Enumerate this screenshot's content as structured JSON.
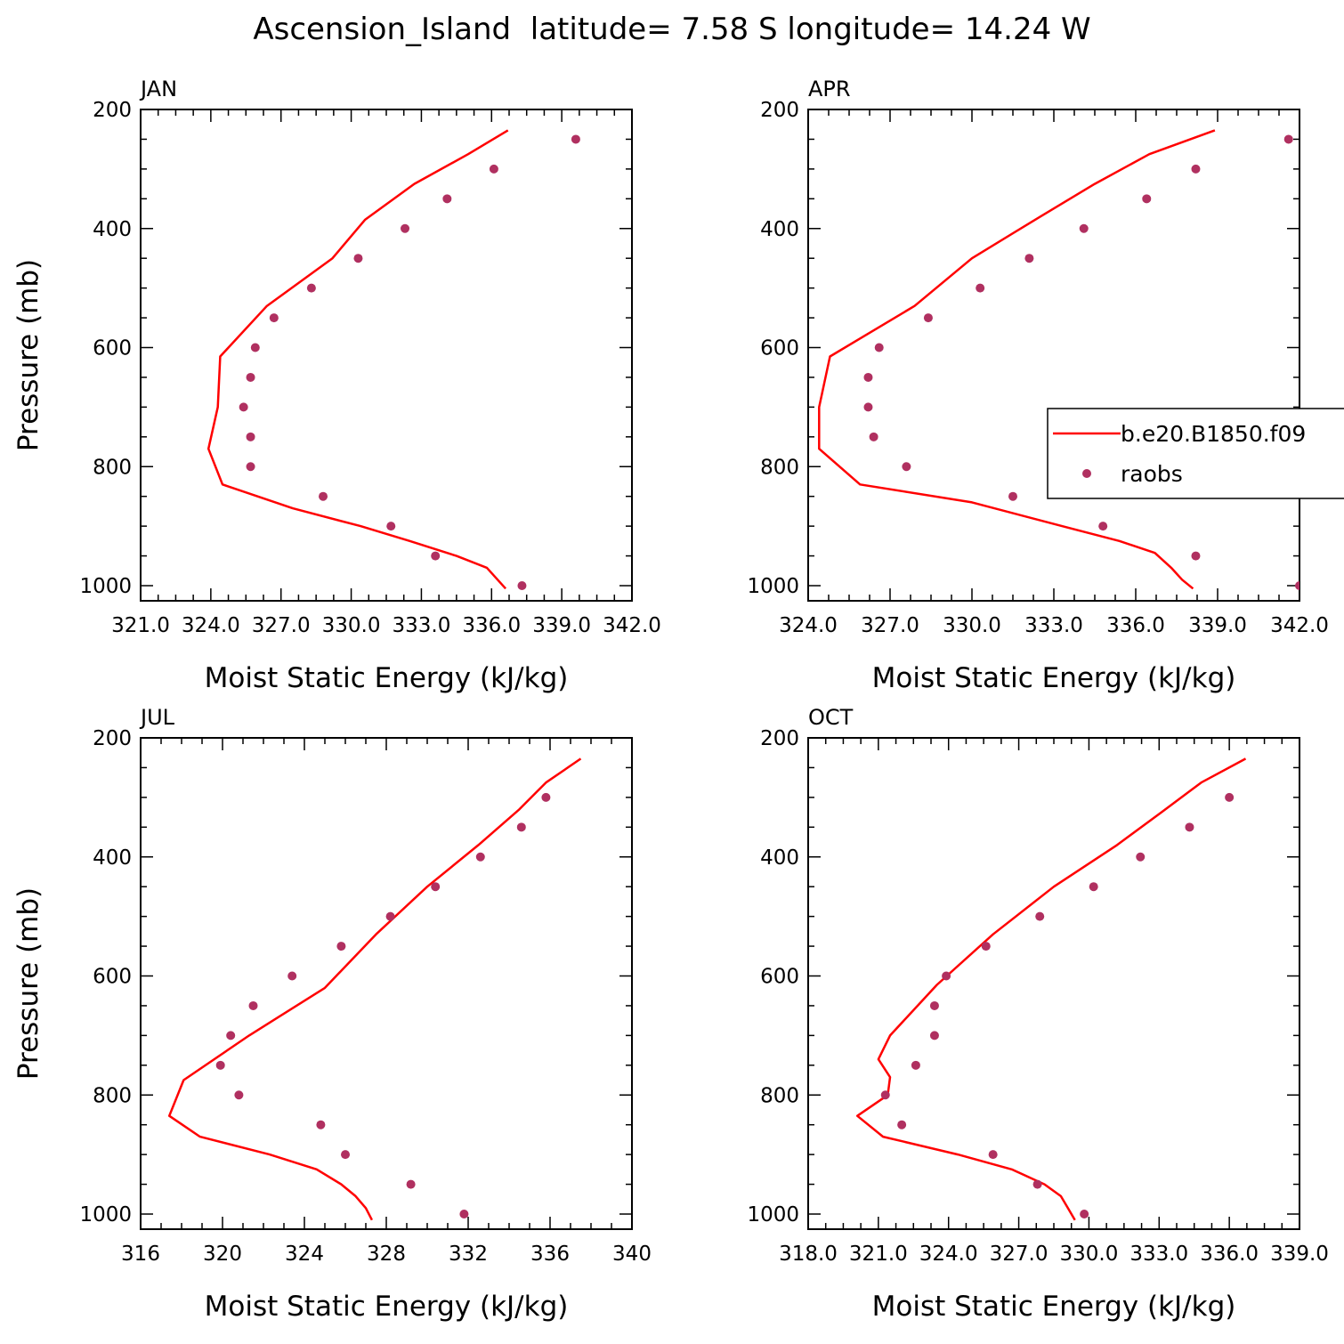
{
  "title": "Ascension_Island  latitude= 7.58 S longitude= 14.24 W",
  "colors": {
    "model": "#ff0000",
    "raobs": "#b03060",
    "axes": "#000000"
  },
  "legend": {
    "model_label": "b.e20.B1850.f09",
    "raobs_label": "raobs"
  },
  "chart_data": [
    {
      "type": "line",
      "panel": "JAN",
      "title": "JAN",
      "xlabel": "Moist Static Energy (kJ/kg)",
      "ylabel": "Pressure (mb)",
      "xlim": [
        321.0,
        342.0
      ],
      "ylim": [
        200,
        1000
      ],
      "xticks": [
        321.0,
        324.0,
        327.0,
        330.0,
        333.0,
        336.0,
        339.0,
        342.0
      ],
      "xtick_labels": [
        "321.0",
        "324.0",
        "327.0",
        "330.0",
        "333.0",
        "336.0",
        "339.0",
        "342.0"
      ],
      "yticks": [
        200,
        400,
        600,
        800,
        1000
      ],
      "ytick_labels": [
        "200",
        "400",
        "600",
        "800",
        "1000"
      ],
      "series": [
        {
          "name": "b.e20.B1850.f09",
          "style": "line",
          "x": [
            336.7,
            335.0,
            332.7,
            330.6,
            329.2,
            326.4,
            324.4,
            324.3,
            323.9,
            324.5,
            327.5,
            330.4,
            332.5,
            334.5,
            335.8,
            336.6
          ],
          "y": [
            235,
            275,
            325,
            385,
            450,
            530,
            615,
            700,
            770,
            830,
            870,
            900,
            925,
            950,
            970,
            1005
          ]
        },
        {
          "name": "raobs",
          "style": "points",
          "x": [
            339.6,
            336.1,
            334.1,
            332.3,
            330.3,
            328.3,
            326.7,
            325.9,
            325.7,
            325.4,
            325.7,
            325.7,
            328.8,
            331.7,
            333.6,
            337.3
          ],
          "y": [
            250,
            300,
            350,
            400,
            450,
            500,
            550,
            600,
            650,
            700,
            750,
            800,
            850,
            900,
            950,
            1000
          ]
        }
      ]
    },
    {
      "type": "line",
      "panel": "APR",
      "title": "APR",
      "xlabel": "Moist Static Energy (kJ/kg)",
      "ylabel": "",
      "xlim": [
        324.0,
        342.0
      ],
      "ylim": [
        200,
        1000
      ],
      "xticks": [
        324.0,
        327.0,
        330.0,
        333.0,
        336.0,
        339.0,
        342.0
      ],
      "xtick_labels": [
        "324.0",
        "327.0",
        "330.0",
        "333.0",
        "336.0",
        "339.0",
        "342.0"
      ],
      "yticks": [
        200,
        400,
        600,
        800,
        1000
      ],
      "ytick_labels": [
        "200",
        "400",
        "600",
        "800",
        "1000"
      ],
      "series": [
        {
          "name": "b.e20.B1850.f09",
          "style": "line",
          "x": [
            338.9,
            336.5,
            334.5,
            332.5,
            330.0,
            327.9,
            324.8,
            324.4,
            324.4,
            325.9,
            330.0,
            333.3,
            335.4,
            336.7,
            337.3,
            337.7,
            338.1
          ],
          "y": [
            235,
            275,
            325,
            380,
            450,
            530,
            615,
            700,
            770,
            830,
            860,
            900,
            925,
            945,
            970,
            990,
            1005
          ]
        },
        {
          "name": "raobs",
          "style": "points",
          "x": [
            341.6,
            338.2,
            336.4,
            334.1,
            332.1,
            330.3,
            328.4,
            326.6,
            326.2,
            326.2,
            326.4,
            327.6,
            331.5,
            334.8,
            338.2,
            342.0
          ],
          "y": [
            250,
            300,
            350,
            400,
            450,
            500,
            550,
            600,
            650,
            700,
            750,
            800,
            850,
            900,
            950,
            1000
          ]
        }
      ]
    },
    {
      "type": "line",
      "panel": "JUL",
      "title": "JUL",
      "xlabel": "Moist Static Energy (kJ/kg)",
      "ylabel": "Pressure (mb)",
      "xlim": [
        316,
        340
      ],
      "ylim": [
        200,
        1000
      ],
      "xticks": [
        316,
        320,
        324,
        328,
        332,
        336,
        340
      ],
      "xtick_labels": [
        "316",
        "320",
        "324",
        "328",
        "332",
        "336",
        "340"
      ],
      "yticks": [
        200,
        400,
        600,
        800,
        1000
      ],
      "ytick_labels": [
        "200",
        "400",
        "600",
        "800",
        "1000"
      ],
      "series": [
        {
          "name": "b.e20.B1850.f09",
          "style": "line",
          "x": [
            337.5,
            335.8,
            334.5,
            332.5,
            330.0,
            327.5,
            325.0,
            321.3,
            318.1,
            317.4,
            318.9,
            322.3,
            324.6,
            325.8,
            326.5,
            327.0,
            327.3
          ],
          "y": [
            235,
            275,
            320,
            380,
            450,
            530,
            620,
            700,
            775,
            835,
            870,
            900,
            925,
            950,
            970,
            990,
            1010
          ]
        },
        {
          "name": "raobs",
          "style": "points",
          "x": [
            335.8,
            334.6,
            332.6,
            330.4,
            328.2,
            325.8,
            323.4,
            321.5,
            320.4,
            319.9,
            320.8,
            324.8,
            326.0,
            329.2,
            331.8
          ],
          "y": [
            300,
            350,
            400,
            450,
            500,
            550,
            600,
            650,
            700,
            750,
            800,
            850,
            900,
            950,
            1000
          ]
        }
      ]
    },
    {
      "type": "line",
      "panel": "OCT",
      "title": "OCT",
      "xlabel": "Moist Static Energy (kJ/kg)",
      "ylabel": "",
      "xlim": [
        318.0,
        339.0
      ],
      "ylim": [
        200,
        1000
      ],
      "xticks": [
        318.0,
        321.0,
        324.0,
        327.0,
        330.0,
        333.0,
        336.0,
        339.0
      ],
      "xtick_labels": [
        "318.0",
        "321.0",
        "324.0",
        "327.0",
        "330.0",
        "333.0",
        "336.0",
        "339.0"
      ],
      "yticks": [
        200,
        400,
        600,
        800,
        1000
      ],
      "ytick_labels": [
        "200",
        "400",
        "600",
        "800",
        "1000"
      ],
      "series": [
        {
          "name": "b.e20.B1850.f09",
          "style": "line",
          "x": [
            336.7,
            334.8,
            333.1,
            331.2,
            328.5,
            325.9,
            323.5,
            321.5,
            321.0,
            321.5,
            321.4,
            320.1,
            321.2,
            324.4,
            326.7,
            328.1,
            328.8,
            329.1,
            329.4
          ],
          "y": [
            235,
            275,
            325,
            380,
            450,
            530,
            615,
            700,
            740,
            770,
            800,
            835,
            870,
            900,
            925,
            950,
            970,
            990,
            1010
          ]
        },
        {
          "name": "raobs",
          "style": "points",
          "x": [
            336.0,
            334.3,
            332.2,
            330.2,
            327.9,
            325.6,
            323.9,
            323.4,
            323.4,
            322.6,
            321.3,
            322.0,
            325.9,
            327.8,
            329.8
          ],
          "y": [
            300,
            350,
            400,
            450,
            500,
            550,
            600,
            650,
            700,
            750,
            800,
            850,
            900,
            950,
            1000
          ]
        }
      ]
    }
  ]
}
